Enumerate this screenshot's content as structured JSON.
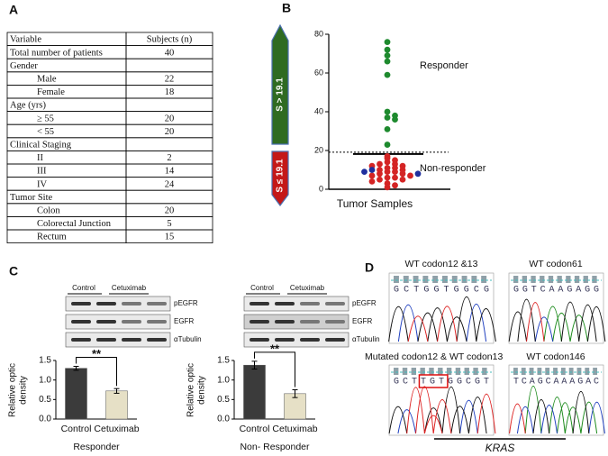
{
  "panel_labels": [
    "A",
    "B",
    "C",
    "D"
  ],
  "table": {
    "header": [
      "Variable",
      "Subjects (n)"
    ],
    "sections": [
      {
        "label": "Total number of patients",
        "value": 40
      },
      {
        "label": "Gender",
        "items": [
          {
            "label": "Male",
            "value": 22
          },
          {
            "label": "Female",
            "value": 18
          }
        ]
      },
      {
        "label": "Age  (yrs)",
        "items": [
          {
            "label": "≥ 55",
            "value": 20
          },
          {
            "label": "< 55",
            "value": 20
          }
        ]
      },
      {
        "label": "Clinical Staging",
        "items": [
          {
            "label": "II",
            "value": 2
          },
          {
            "label": "III",
            "value": 14
          },
          {
            "label": "IV",
            "value": 24
          }
        ]
      },
      {
        "label": "Tumor Site",
        "items": [
          {
            "label": "Colon",
            "value": 20
          },
          {
            "label": "Colorectal Junction",
            "value": 5
          },
          {
            "label": "Rectum",
            "value": 15
          }
        ]
      }
    ]
  },
  "chart_data": [
    {
      "type": "scatter",
      "xlabel": "Tumor Samples",
      "ylim": [
        0,
        80
      ],
      "yticks": [
        0,
        20,
        40,
        60,
        80
      ],
      "threshold": 19.1,
      "upper_label": "S > 19.1",
      "lower_label": "S ≤ 19.1",
      "annotations": [
        "Responder",
        "Non-responder"
      ],
      "series": [
        {
          "color": "#1e8a2e",
          "values": [
            76,
            72,
            69,
            66,
            59,
            40,
            38,
            37,
            36,
            31,
            23
          ]
        },
        {
          "color": "#d42424",
          "values": [
            17,
            16,
            15,
            14,
            13,
            13,
            12,
            12,
            11,
            11,
            10,
            10,
            9,
            9,
            8,
            8,
            7,
            7,
            6,
            6,
            5,
            5,
            4,
            3,
            2,
            1
          ]
        },
        {
          "color": "#1f2f9e",
          "values": [
            10,
            9,
            8
          ]
        }
      ]
    },
    {
      "type": "bar",
      "xlabel": "Responder",
      "ylabel": [
        "Relative optic",
        "density"
      ],
      "categories": [
        "Control",
        "Cetuximab"
      ],
      "values": [
        1.3,
        0.72
      ],
      "errors": [
        0.05,
        0.06
      ],
      "colors": [
        "#3b3b3b",
        "#e6e0c6"
      ],
      "significance": "**",
      "ylim": [
        0,
        1.5
      ],
      "yticks": [
        {
          "value": 0,
          "label": "0.0"
        },
        0.5,
        {
          "value": 1,
          "label": "1.0"
        },
        1.5
      ],
      "blot": {
        "lanes": [
          "Control",
          "Cetuximab"
        ],
        "bands": [
          "pEGFR",
          "EGFR",
          "αTubulin"
        ]
      }
    },
    {
      "type": "bar",
      "xlabel": "Non- Responder",
      "ylabel": [
        "Relative optic",
        "density"
      ],
      "categories": [
        "Control",
        "Cetuximab"
      ],
      "values": [
        1.38,
        0.65
      ],
      "errors": [
        0.1,
        0.1
      ],
      "colors": [
        "#3b3b3b",
        "#e6e0c6"
      ],
      "significance": "**",
      "ylim": [
        0,
        1.5
      ],
      "yticks": [
        {
          "value": 0,
          "label": "0.0"
        },
        0.5,
        {
          "value": 1,
          "label": "1.0"
        },
        1.5
      ],
      "blot": {
        "lanes": [
          "Control",
          "Cetuximab"
        ],
        "bands": [
          "pEGFR",
          "EGFR",
          "αTubulin"
        ]
      }
    }
  ],
  "sequencing": {
    "gene": "KRAS",
    "panels": [
      {
        "title": "WT codon12 &13",
        "sequence": "GCTGGTGGCG"
      },
      {
        "title": "WT codon61",
        "sequence": "GGTCAAGAGG"
      },
      {
        "title": "Mutated codon12 & WT codon13",
        "sequence": "GCTTGTGGCGT"
      },
      {
        "title": "WT codon146",
        "sequence": "TCAGCAAAGAC"
      }
    ]
  }
}
